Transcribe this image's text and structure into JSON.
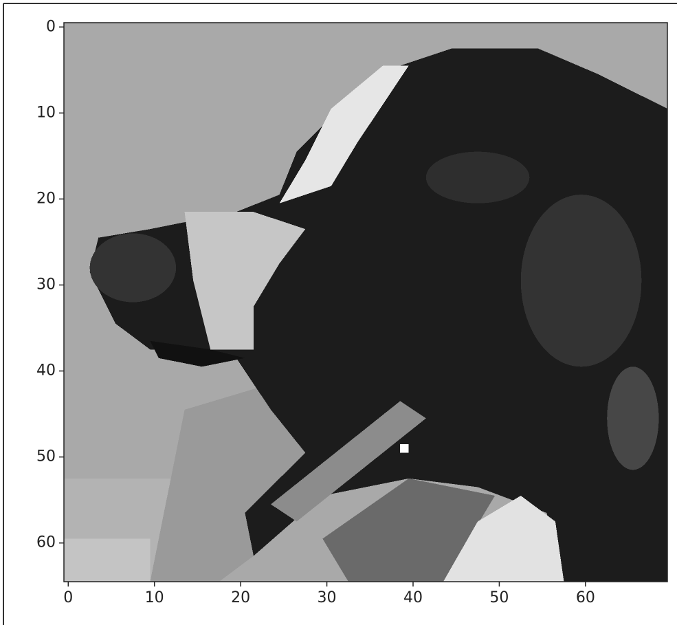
{
  "chart_data": {
    "type": "image",
    "xlim": [
      -0.5,
      69.5
    ],
    "ylim": [
      64.5,
      -0.5
    ],
    "xticks": [
      0,
      10,
      20,
      30,
      40,
      50,
      60
    ],
    "yticks": [
      0,
      10,
      20,
      30,
      40,
      50,
      60
    ]
  }
}
